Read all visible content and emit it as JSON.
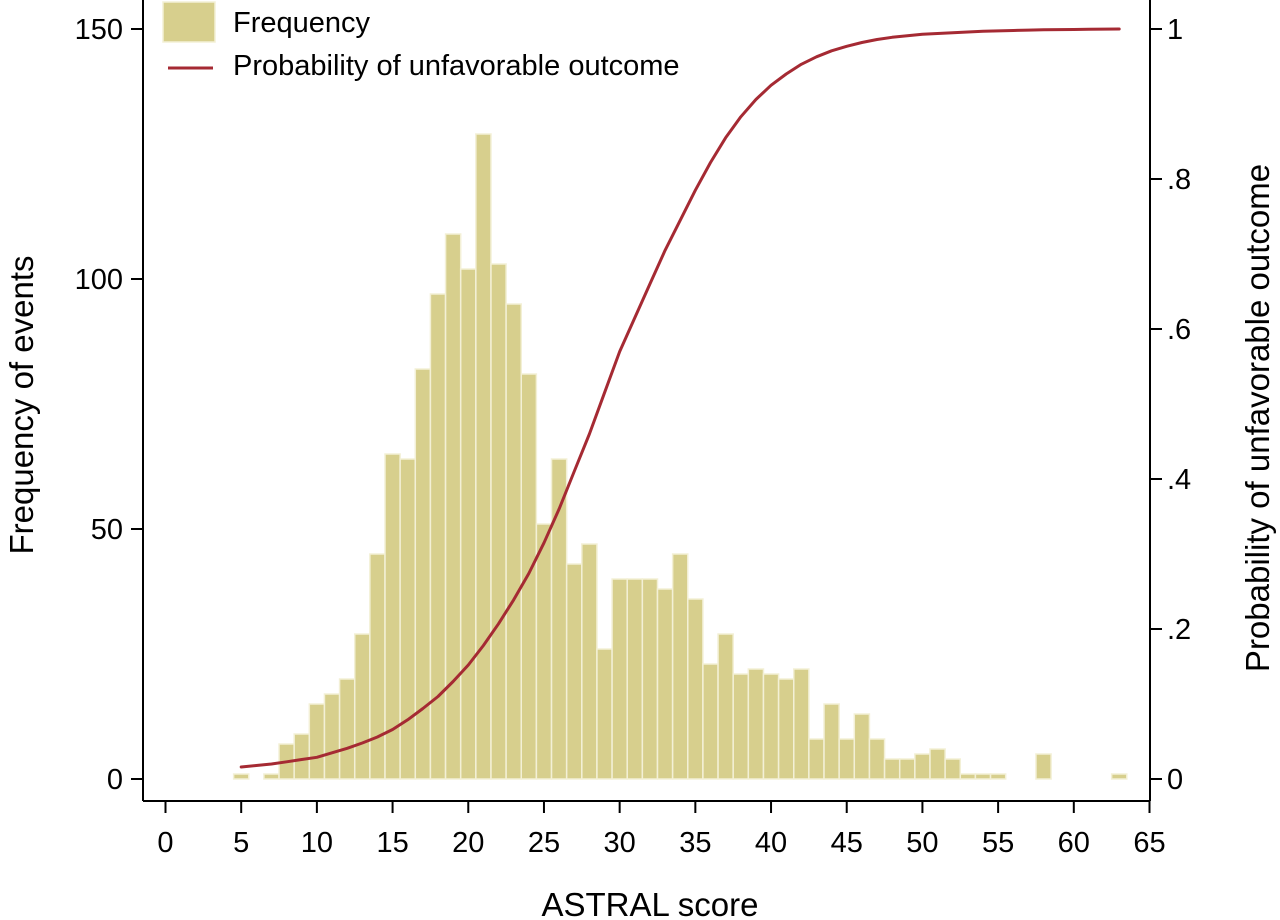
{
  "chart_data": {
    "type": "bar",
    "subtype": "histogram-with-line",
    "xlabel": "ASTRAL score",
    "ylabel": "Frequency of events",
    "y2label": "Probability of unfavorable outcome",
    "xlim": [
      -0.5,
      65
    ],
    "ylim": [
      0,
      150
    ],
    "y2lim": [
      0,
      1
    ],
    "xticks": [
      0,
      5,
      10,
      15,
      20,
      25,
      30,
      35,
      40,
      45,
      50,
      55,
      60,
      65
    ],
    "yticks": [
      0,
      50,
      100,
      150
    ],
    "ytick_labels": [
      "0",
      "50",
      "100",
      "150"
    ],
    "y2ticks": [
      0,
      0.2,
      0.4,
      0.6,
      0.8,
      1
    ],
    "y2tick_labels": [
      "0",
      ".2",
      ".4",
      ".6",
      ".8",
      "1"
    ],
    "legend": {
      "position": "top-left",
      "entries": [
        "Frequency",
        "Probability of unfavorable outcome"
      ]
    },
    "colors": {
      "bars": "#d7cf8d",
      "bar_edge": "#f3f0d6",
      "line": "#a52a33"
    },
    "series": [
      {
        "name": "Frequency",
        "kind": "bar",
        "x": [
          5,
          7,
          8,
          9,
          10,
          11,
          12,
          13,
          14,
          15,
          16,
          17,
          18,
          19,
          20,
          21,
          22,
          23,
          24,
          25,
          26,
          27,
          28,
          29,
          30,
          31,
          32,
          33,
          34,
          35,
          36,
          37,
          38,
          39,
          40,
          41,
          42,
          43,
          44,
          45,
          46,
          47,
          48,
          49,
          50,
          51,
          52,
          53,
          54,
          55,
          58,
          63
        ],
        "values": [
          1,
          1,
          7,
          9,
          15,
          17,
          20,
          29,
          45,
          65,
          64,
          82,
          97,
          109,
          102,
          129,
          103,
          95,
          81,
          51,
          64,
          43,
          47,
          26,
          40,
          40,
          40,
          38,
          45,
          36,
          23,
          29,
          21,
          22,
          21,
          20,
          22,
          8,
          15,
          8,
          13,
          8,
          4,
          4,
          5,
          6,
          4,
          1,
          1,
          1,
          5,
          1
        ]
      },
      {
        "name": "Probability of unfavorable outcome",
        "kind": "line",
        "axis": "right",
        "x": [
          5,
          6,
          7,
          8,
          9,
          10,
          11,
          12,
          13,
          14,
          15,
          16,
          17,
          18,
          19,
          20,
          21,
          22,
          23,
          24,
          25,
          26,
          27,
          28,
          29,
          30,
          31,
          32,
          33,
          34,
          35,
          36,
          37,
          38,
          39,
          40,
          41,
          42,
          43,
          44,
          45,
          46,
          47,
          48,
          49,
          50,
          51,
          52,
          53,
          54,
          55,
          56,
          57,
          58,
          59,
          60,
          61,
          62,
          63
        ],
        "values": [
          0.016,
          0.018,
          0.02,
          0.023,
          0.026,
          0.029,
          0.035,
          0.041,
          0.048,
          0.056,
          0.066,
          0.079,
          0.094,
          0.11,
          0.13,
          0.152,
          0.178,
          0.207,
          0.239,
          0.274,
          0.315,
          0.36,
          0.41,
          0.46,
          0.515,
          0.57,
          0.615,
          0.66,
          0.705,
          0.745,
          0.785,
          0.822,
          0.855,
          0.883,
          0.906,
          0.925,
          0.94,
          0.953,
          0.963,
          0.971,
          0.977,
          0.982,
          0.986,
          0.989,
          0.991,
          0.993,
          0.994,
          0.995,
          0.996,
          0.997,
          0.9975,
          0.998,
          0.9985,
          0.999,
          0.9992,
          0.9994,
          0.9996,
          0.9998,
          1.0
        ]
      }
    ]
  }
}
